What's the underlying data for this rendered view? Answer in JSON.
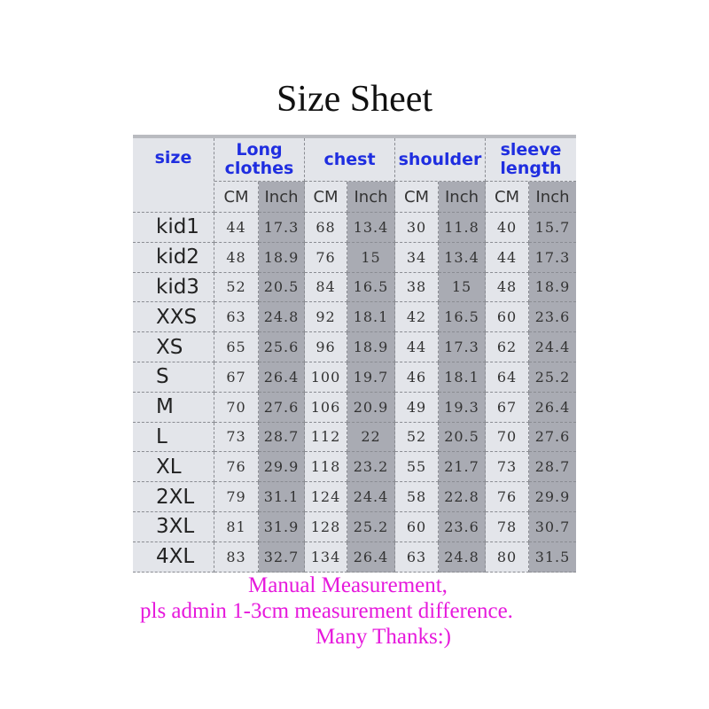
{
  "title": "Size Sheet",
  "headers": {
    "size": "size",
    "groups": [
      "Long clothes",
      "chest",
      "shoulder",
      "sleeve length"
    ]
  },
  "units": [
    "CM",
    "Inch",
    "CM",
    "Inch",
    "CM",
    "Inch",
    "CM",
    "Inch"
  ],
  "rows": [
    [
      "kid1",
      "44",
      "17.3",
      "68",
      "13.4",
      "30",
      "11.8",
      "40",
      "15.7"
    ],
    [
      "kid2",
      "48",
      "18.9",
      "76",
      "15",
      "34",
      "13.4",
      "44",
      "17.3"
    ],
    [
      "kid3",
      "52",
      "20.5",
      "84",
      "16.5",
      "38",
      "15",
      "48",
      "18.9"
    ],
    [
      "XXS",
      "63",
      "24.8",
      "92",
      "18.1",
      "42",
      "16.5",
      "60",
      "23.6"
    ],
    [
      "XS",
      "65",
      "25.6",
      "96",
      "18.9",
      "44",
      "17.3",
      "62",
      "24.4"
    ],
    [
      "S",
      "67",
      "26.4",
      "100",
      "19.7",
      "46",
      "18.1",
      "64",
      "25.2"
    ],
    [
      "M",
      "70",
      "27.6",
      "106",
      "20.9",
      "49",
      "19.3",
      "67",
      "26.4"
    ],
    [
      "L",
      "73",
      "28.7",
      "112",
      "22",
      "52",
      "20.5",
      "70",
      "27.6"
    ],
    [
      "XL",
      "76",
      "29.9",
      "118",
      "23.2",
      "55",
      "21.7",
      "73",
      "28.7"
    ],
    [
      "2XL",
      "79",
      "31.1",
      "124",
      "24.4",
      "58",
      "22.8",
      "76",
      "29.9"
    ],
    [
      "3XL",
      "81",
      "31.9",
      "128",
      "25.2",
      "60",
      "23.6",
      "78",
      "30.7"
    ],
    [
      "4XL",
      "83",
      "32.7",
      "134",
      "26.4",
      "63",
      "24.8",
      "80",
      "31.5"
    ]
  ],
  "note": [
    "Manual Measurement,",
    "pls admin 1-3cm measurement difference.",
    "Many Thanks:)"
  ],
  "colors": {
    "header_text": "#1f2ee0",
    "note_text": "#e619dc",
    "inch_column": "#a9abb3",
    "cm_column": "#e3e5ea"
  }
}
